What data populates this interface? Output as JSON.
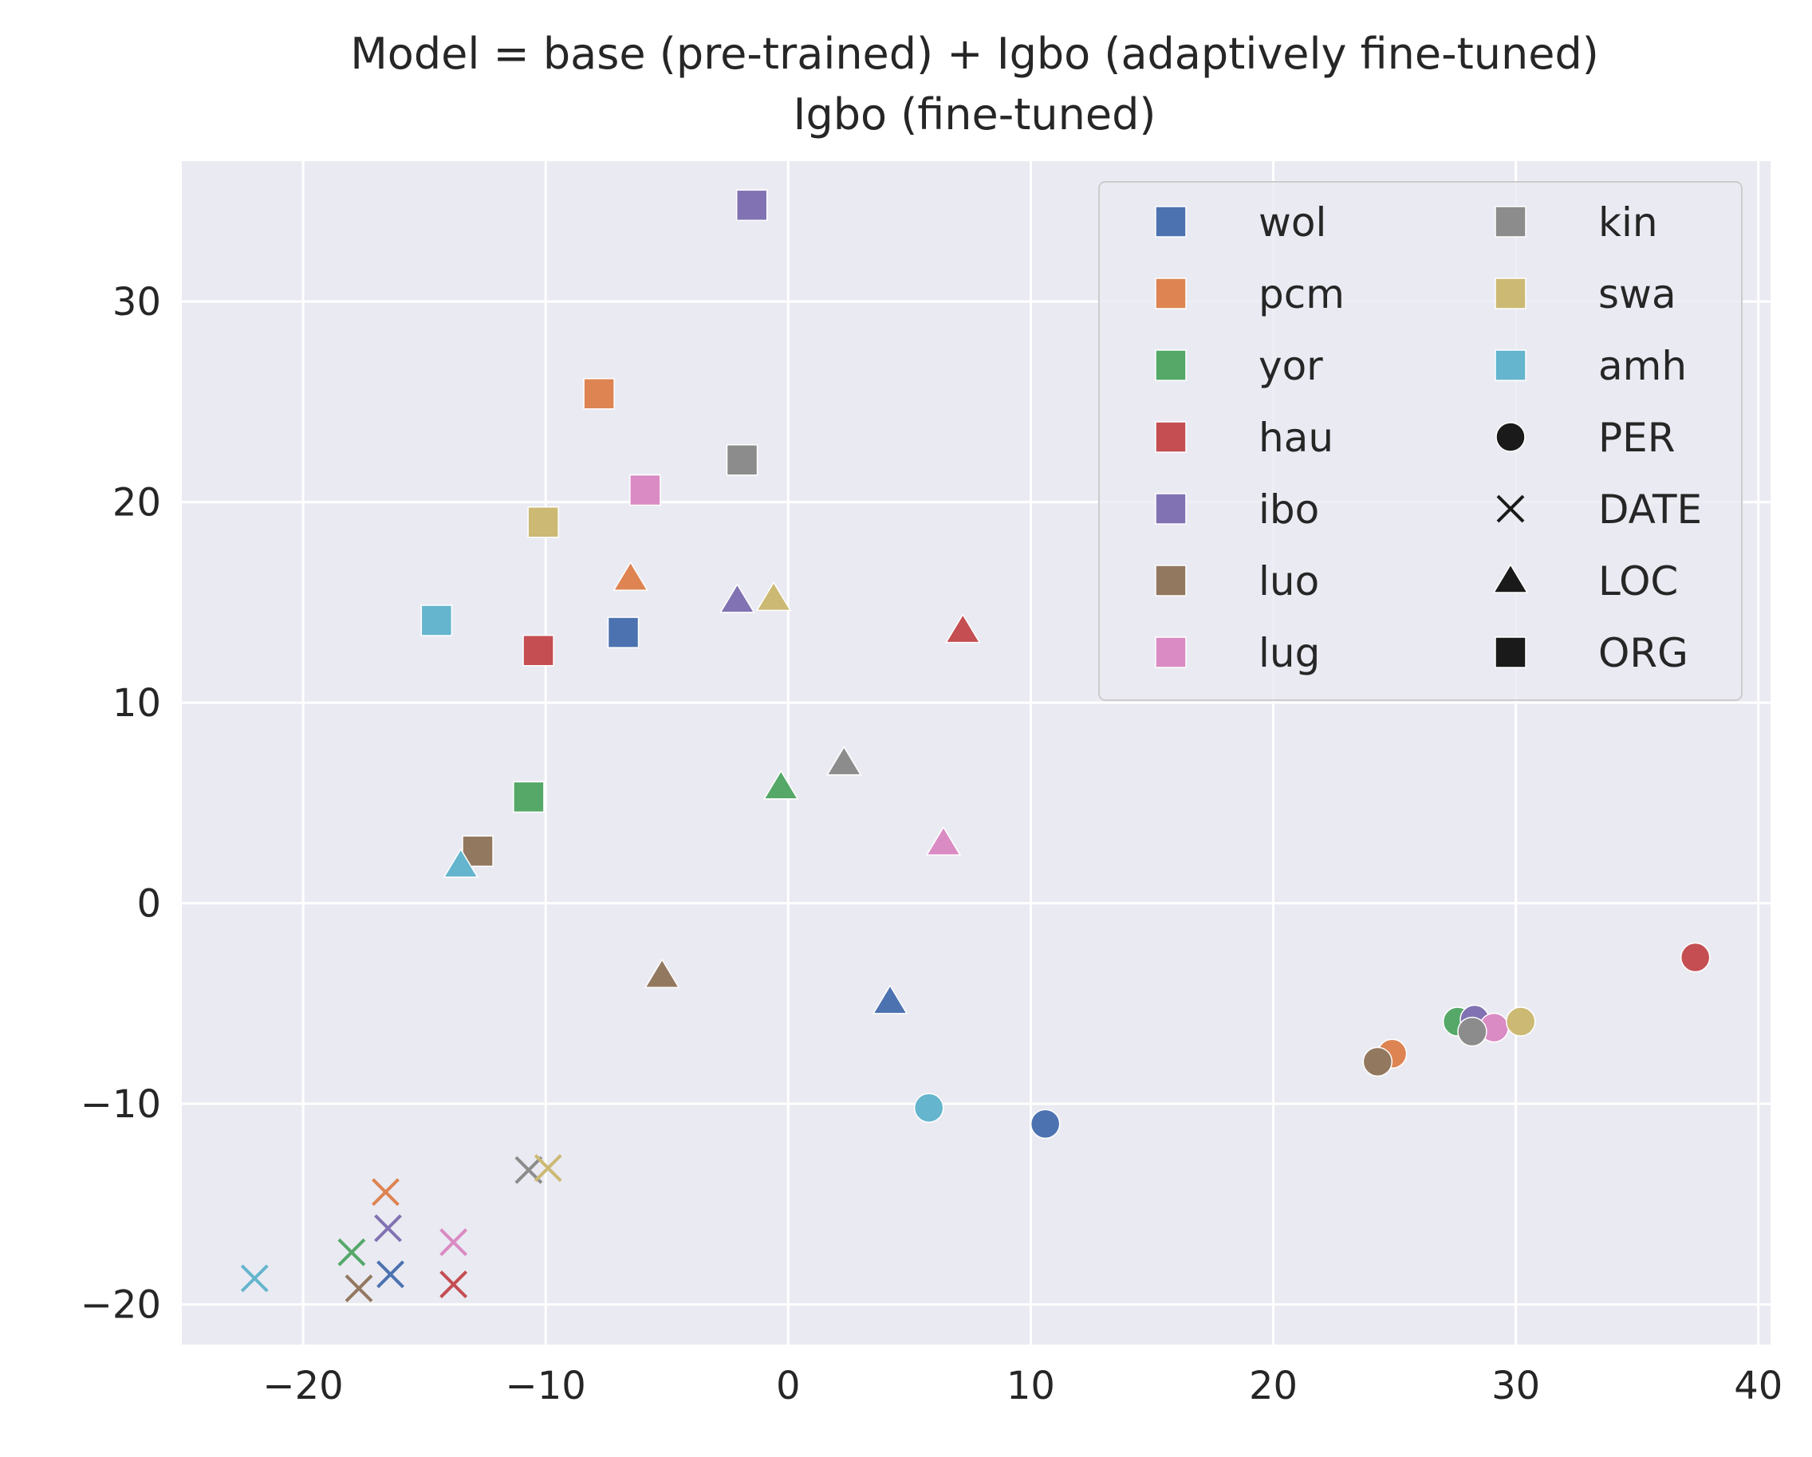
{
  "chart_data": {
    "type": "scatter",
    "title": "Model = base (pre-trained) + Igbo (adaptively fine-tuned)",
    "subtitle": "Igbo (fine-tuned)",
    "xlabel": "",
    "ylabel": "",
    "xlim": [
      -25,
      40.5
    ],
    "ylim": [
      -22,
      37
    ],
    "x_ticks": [
      -20,
      -10,
      0,
      10,
      20,
      30,
      40
    ],
    "y_ticks": [
      -20,
      -10,
      0,
      10,
      20,
      30
    ],
    "x_tick_labels": [
      "−20",
      "−10",
      "0",
      "10",
      "20",
      "30",
      "40"
    ],
    "y_tick_labels": [
      "−20",
      "−10",
      "0",
      "10",
      "20",
      "30"
    ],
    "grid": true,
    "legend_position": "top-right",
    "languages": [
      {
        "name": "wol",
        "color": "#4c72b0"
      },
      {
        "name": "pcm",
        "color": "#dd8452"
      },
      {
        "name": "yor",
        "color": "#55a868"
      },
      {
        "name": "hau",
        "color": "#c44e52"
      },
      {
        "name": "ibo",
        "color": "#8172b3"
      },
      {
        "name": "luo",
        "color": "#937860"
      },
      {
        "name": "lug",
        "color": "#da8bc3"
      },
      {
        "name": "kin",
        "color": "#8c8c8c"
      },
      {
        "name": "swa",
        "color": "#ccb974"
      },
      {
        "name": "amh",
        "color": "#64b5cd"
      }
    ],
    "entity_types": [
      {
        "name": "PER",
        "marker": "circle"
      },
      {
        "name": "DATE",
        "marker": "x"
      },
      {
        "name": "LOC",
        "marker": "triangle"
      },
      {
        "name": "ORG",
        "marker": "square"
      }
    ],
    "points": [
      {
        "lang": "wol",
        "entity": "ORG",
        "x": -6.8,
        "y": 13.5
      },
      {
        "lang": "pcm",
        "entity": "ORG",
        "x": -7.8,
        "y": 25.4
      },
      {
        "lang": "yor",
        "entity": "ORG",
        "x": -10.7,
        "y": 5.3
      },
      {
        "lang": "hau",
        "entity": "ORG",
        "x": -10.3,
        "y": 12.6
      },
      {
        "lang": "ibo",
        "entity": "ORG",
        "x": -1.5,
        "y": 34.8
      },
      {
        "lang": "luo",
        "entity": "ORG",
        "x": -12.8,
        "y": 2.6
      },
      {
        "lang": "lug",
        "entity": "ORG",
        "x": -5.9,
        "y": 20.6
      },
      {
        "lang": "kin",
        "entity": "ORG",
        "x": -1.9,
        "y": 22.1
      },
      {
        "lang": "swa",
        "entity": "ORG",
        "x": -10.1,
        "y": 19.0
      },
      {
        "lang": "amh",
        "entity": "ORG",
        "x": -14.5,
        "y": 14.1
      },
      {
        "lang": "wol",
        "entity": "LOC",
        "x": 4.2,
        "y": -4.9
      },
      {
        "lang": "pcm",
        "entity": "LOC",
        "x": -6.5,
        "y": 16.2
      },
      {
        "lang": "yor",
        "entity": "LOC",
        "x": -0.3,
        "y": 5.8
      },
      {
        "lang": "hau",
        "entity": "LOC",
        "x": 7.2,
        "y": 13.6
      },
      {
        "lang": "ibo",
        "entity": "LOC",
        "x": -2.1,
        "y": 15.1
      },
      {
        "lang": "luo",
        "entity": "LOC",
        "x": -5.2,
        "y": -3.6
      },
      {
        "lang": "lug",
        "entity": "LOC",
        "x": 6.4,
        "y": 3.0
      },
      {
        "lang": "kin",
        "entity": "LOC",
        "x": 2.3,
        "y": 7.0
      },
      {
        "lang": "swa",
        "entity": "LOC",
        "x": -0.6,
        "y": 15.2
      },
      {
        "lang": "amh",
        "entity": "LOC",
        "x": -13.5,
        "y": 1.9
      },
      {
        "lang": "wol",
        "entity": "PER",
        "x": 10.6,
        "y": -11.0
      },
      {
        "lang": "pcm",
        "entity": "PER",
        "x": 24.9,
        "y": -7.5
      },
      {
        "lang": "yor",
        "entity": "PER",
        "x": 27.6,
        "y": -5.9
      },
      {
        "lang": "hau",
        "entity": "PER",
        "x": 37.4,
        "y": -2.7
      },
      {
        "lang": "ibo",
        "entity": "PER",
        "x": 28.3,
        "y": -5.8
      },
      {
        "lang": "luo",
        "entity": "PER",
        "x": 24.3,
        "y": -7.9
      },
      {
        "lang": "lug",
        "entity": "PER",
        "x": 29.1,
        "y": -6.2
      },
      {
        "lang": "kin",
        "entity": "PER",
        "x": 28.2,
        "y": -6.4
      },
      {
        "lang": "swa",
        "entity": "PER",
        "x": 30.2,
        "y": -5.9
      },
      {
        "lang": "amh",
        "entity": "PER",
        "x": 5.8,
        "y": -10.2
      },
      {
        "lang": "wol",
        "entity": "DATE",
        "x": -16.4,
        "y": -18.5
      },
      {
        "lang": "pcm",
        "entity": "DATE",
        "x": -16.6,
        "y": -14.4
      },
      {
        "lang": "yor",
        "entity": "DATE",
        "x": -18.0,
        "y": -17.4
      },
      {
        "lang": "hau",
        "entity": "DATE",
        "x": -13.8,
        "y": -19.0
      },
      {
        "lang": "ibo",
        "entity": "DATE",
        "x": -16.5,
        "y": -16.2
      },
      {
        "lang": "luo",
        "entity": "DATE",
        "x": -17.7,
        "y": -19.2
      },
      {
        "lang": "lug",
        "entity": "DATE",
        "x": -13.8,
        "y": -16.9
      },
      {
        "lang": "kin",
        "entity": "DATE",
        "x": -10.7,
        "y": -13.3
      },
      {
        "lang": "swa",
        "entity": "DATE",
        "x": -9.9,
        "y": -13.2
      },
      {
        "lang": "amh",
        "entity": "DATE",
        "x": -22.0,
        "y": -18.7
      }
    ]
  }
}
